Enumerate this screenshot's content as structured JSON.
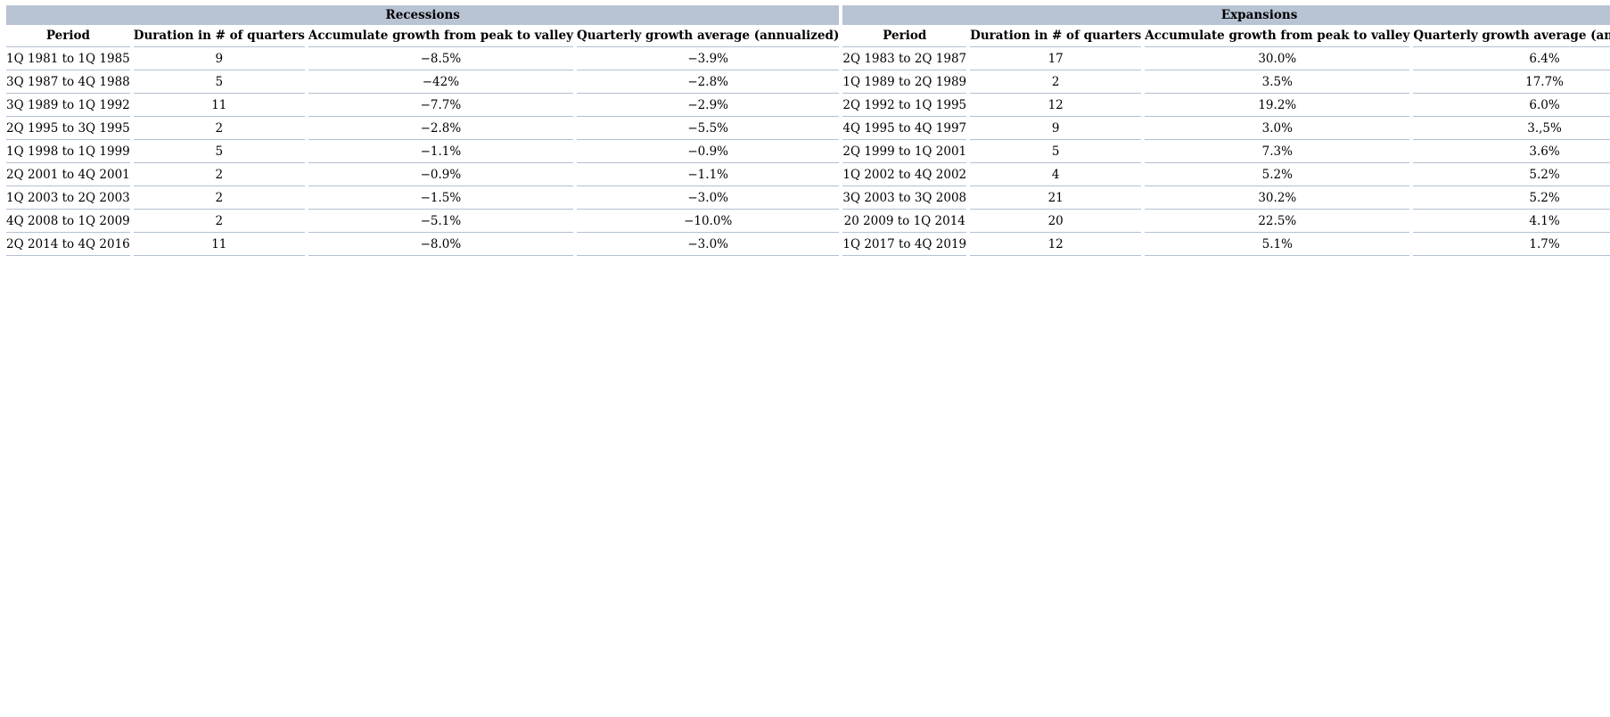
{
  "colors": {
    "section_band_bg": "#b8c3d3",
    "row_border": "#b3c0d2",
    "text": "#000000",
    "page_bg": "#ffffff"
  },
  "table": {
    "section_titles": [
      "Recessions",
      "Expansions"
    ],
    "column_headers": [
      "Period",
      "Duration in # of quarters",
      "Accumulate growth from peak to valley",
      "Quarterly growth average (annualized)",
      "Period",
      "Duration in # of quarters",
      "Accumulate growth from peak to valley",
      "Quarterly growth average (annualized)"
    ],
    "rows": [
      [
        "1Q 1981 to 1Q 1985",
        "9",
        "−8.5%",
        "−3.9%",
        "2Q 1983 to 2Q 1987",
        "17",
        "30.0%",
        "6.4%"
      ],
      [
        "3Q 1987 to 4Q 1988",
        "5",
        "−42%",
        "−2.8%",
        "1Q 1989 to 2Q 1989",
        "2",
        "3.5%",
        "17.7%"
      ],
      [
        "3Q 1989 to 1Q 1992",
        "11",
        "−7.7%",
        "−2.9%",
        "2Q 1992 to 1Q 1995",
        "12",
        "19.2%",
        "6.0%"
      ],
      [
        "2Q 1995 to 3Q 1995",
        "2",
        "−2.8%",
        "−5.5%",
        "4Q 1995 to 4Q 1997",
        "9",
        "3.0%",
        "3.,5%"
      ],
      [
        "1Q 1998 to 1Q 1999",
        "5",
        "−1.1%",
        "−0.9%",
        "2Q 1999 to 1Q 2001",
        "5",
        "7.3%",
        "3.6%"
      ],
      [
        "2Q 2001 to 4Q 2001",
        "2",
        "−0.9%",
        "−1.1%",
        "1Q 2002 to 4Q 2002",
        "4",
        "5.2%",
        "5.2%"
      ],
      [
        "1Q 2003 to 2Q 2003",
        "2",
        "−1.5%",
        "−3.0%",
        "3Q 2003 to 3Q 2008",
        "21",
        "30.2%",
        "5.2%"
      ],
      [
        "4Q 2008 to 1Q 2009",
        "2",
        "−5.1%",
        "−10.0%",
        "20 2009 to 1Q 2014",
        "20",
        "22.5%",
        "4.1%"
      ],
      [
        "2Q 2014 to 4Q 2016",
        "11",
        "−8.0%",
        "−3.0%",
        "1Q 2017 to 4Q 2019",
        "12",
        "5.1%",
        "1.7%"
      ]
    ]
  }
}
